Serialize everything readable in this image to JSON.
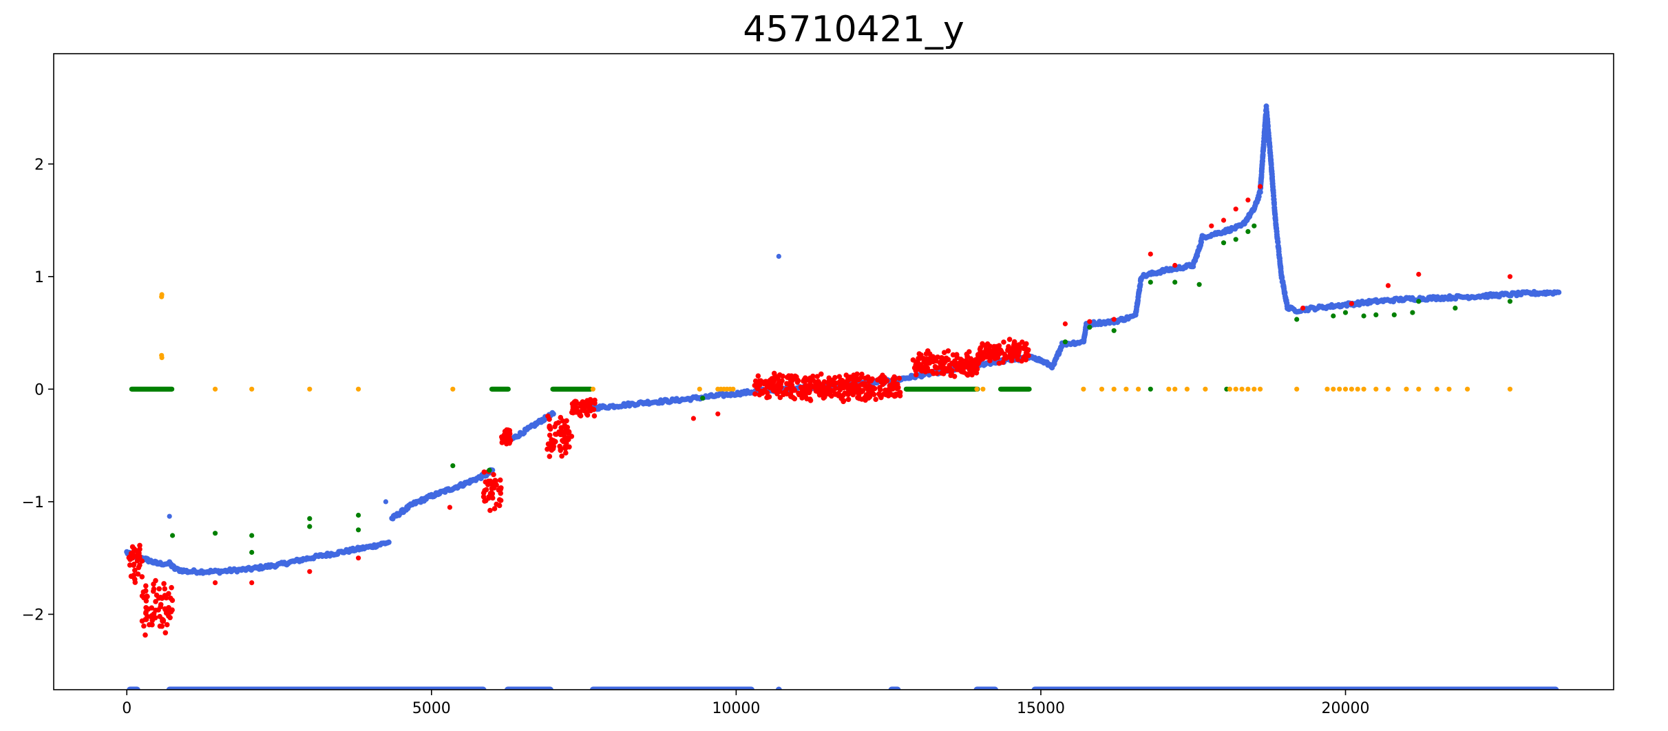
{
  "chart_data": {
    "type": "scatter",
    "title": "45710421_y",
    "xlabel": "",
    "ylabel": "",
    "xlim": [
      -1200,
      24400
    ],
    "ylim": [
      -2.67,
      2.98
    ],
    "xticks": [
      0,
      5000,
      10000,
      15000,
      20000
    ],
    "yticks": [
      -2,
      -1,
      0,
      1,
      2
    ],
    "xtick_labels": [
      "0",
      "5000",
      "10000",
      "15000",
      "20000"
    ],
    "ytick_labels": [
      "−2",
      "−1",
      "0",
      "1",
      "2"
    ],
    "grid": false,
    "legend": "none",
    "colors": {
      "blue": "#4169e1",
      "red": "#ff0000",
      "green": "#008000",
      "orange": "#ffa500"
    },
    "series": [
      {
        "color": "#4169e1",
        "segments": [
          [
            [
              0,
              -1.45
            ],
            [
              120,
              -1.5
            ],
            [
              250,
              -1.5
            ],
            [
              500,
              -1.55
            ],
            [
              700,
              -1.55
            ],
            [
              800,
              -1.6
            ],
            [
              1000,
              -1.62
            ],
            [
              1500,
              -1.62
            ],
            [
              2000,
              -1.6
            ],
            [
              2500,
              -1.56
            ],
            [
              3000,
              -1.5
            ],
            [
              3500,
              -1.45
            ],
            [
              4000,
              -1.4
            ],
            [
              4300,
              -1.36
            ]
          ],
          [
            [
              4350,
              -1.15
            ],
            [
              4700,
              -1.02
            ],
            [
              5000,
              -0.95
            ],
            [
              5500,
              -0.85
            ],
            [
              5900,
              -0.76
            ],
            [
              6000,
              -0.72
            ]
          ],
          [
            [
              6300,
              -0.45
            ],
            [
              6600,
              -0.35
            ],
            [
              6800,
              -0.28
            ],
            [
              7000,
              -0.22
            ]
          ],
          [
            [
              7600,
              -0.17
            ],
            [
              8000,
              -0.15
            ],
            [
              8500,
              -0.12
            ],
            [
              9000,
              -0.1
            ],
            [
              9500,
              -0.07
            ],
            [
              10000,
              -0.04
            ],
            [
              10500,
              -0.01
            ],
            [
              11000,
              0.01
            ],
            [
              11500,
              0.03
            ],
            [
              12000,
              0.05
            ],
            [
              12500,
              0.07
            ],
            [
              13000,
              0.12
            ],
            [
              13500,
              0.17
            ],
            [
              14000,
              0.22
            ],
            [
              14500,
              0.26
            ],
            [
              14900,
              0.28
            ]
          ],
          [
            [
              14900,
              0.28
            ],
            [
              15200,
              0.2
            ],
            [
              15350,
              0.4
            ],
            [
              15700,
              0.42
            ],
            [
              15750,
              0.58
            ],
            [
              16200,
              0.6
            ],
            [
              16550,
              0.65
            ],
            [
              16650,
              1.0
            ],
            [
              17000,
              1.05
            ],
            [
              17500,
              1.1
            ],
            [
              17600,
              1.25
            ],
            [
              17650,
              1.35
            ],
            [
              18000,
              1.4
            ],
            [
              18300,
              1.45
            ],
            [
              18500,
              1.6
            ],
            [
              18600,
              1.75
            ],
            [
              18700,
              2.5
            ],
            [
              18780,
              2.0
            ],
            [
              18850,
              1.5
            ],
            [
              18950,
              1.0
            ],
            [
              19050,
              0.72
            ],
            [
              19200,
              0.7
            ],
            [
              19500,
              0.72
            ],
            [
              20000,
              0.75
            ],
            [
              20500,
              0.78
            ],
            [
              21000,
              0.8
            ],
            [
              22000,
              0.82
            ],
            [
              23000,
              0.85
            ],
            [
              23500,
              0.86
            ]
          ]
        ],
        "points": [
          [
            700,
            -1.13
          ],
          [
            4250,
            -1.0
          ],
          [
            10700,
            1.18
          ]
        ],
        "bottom_bands": [
          [
            0,
            220
          ],
          [
            650,
            5900
          ],
          [
            6200,
            7000
          ],
          [
            7600,
            10300
          ],
          [
            10650,
            10750
          ],
          [
            12500,
            12700
          ],
          [
            13900,
            14300
          ],
          [
            14850,
            23500
          ]
        ],
        "bottom_y": -2.67
      },
      {
        "color": "#ff0000",
        "clusters": [
          {
            "x": [
              30,
              250
            ],
            "y": [
              -1.75,
              -1.35
            ]
          },
          {
            "x": [
              250,
              750
            ],
            "y": [
              -2.2,
              -1.65
            ]
          },
          {
            "x": [
              5850,
              6150
            ],
            "y": [
              -1.1,
              -0.7
            ]
          },
          {
            "x": [
              6150,
              6300
            ],
            "y": [
              -0.5,
              -0.35
            ]
          },
          {
            "x": [
              6900,
              7300
            ],
            "y": [
              -0.65,
              -0.2
            ]
          },
          {
            "x": [
              7300,
              7700
            ],
            "y": [
              -0.25,
              -0.08
            ]
          },
          {
            "x": [
              10300,
              12700
            ],
            "y": [
              -0.12,
              0.15
            ]
          },
          {
            "x": [
              12900,
              14000
            ],
            "y": [
              0.1,
              0.35
            ]
          },
          {
            "x": [
              14000,
              14800
            ],
            "y": [
              0.22,
              0.45
            ]
          }
        ],
        "points": [
          [
            1450,
            -1.72
          ],
          [
            2050,
            -1.72
          ],
          [
            3000,
            -1.62
          ],
          [
            3800,
            -1.5
          ],
          [
            5300,
            -1.05
          ],
          [
            9300,
            -0.26
          ],
          [
            9700,
            -0.22
          ],
          [
            15400,
            0.58
          ],
          [
            15800,
            0.6
          ],
          [
            16200,
            0.62
          ],
          [
            16800,
            1.2
          ],
          [
            17200,
            1.1
          ],
          [
            17800,
            1.45
          ],
          [
            18000,
            1.5
          ],
          [
            18200,
            1.6
          ],
          [
            18400,
            1.68
          ],
          [
            18600,
            1.8
          ],
          [
            20700,
            0.92
          ],
          [
            21200,
            1.02
          ],
          [
            22700,
            1.0
          ],
          [
            19300,
            0.72
          ],
          [
            20100,
            0.76
          ]
        ]
      },
      {
        "color": "#008000",
        "bands_at_zero": [
          [
            40,
            780
          ],
          [
            5950,
            6300
          ],
          [
            6950,
            7650
          ],
          [
            12750,
            14000
          ],
          [
            14300,
            14850
          ]
        ],
        "points": [
          [
            750,
            -1.3
          ],
          [
            1450,
            -1.28
          ],
          [
            2050,
            -1.3
          ],
          [
            2050,
            -1.45
          ],
          [
            3000,
            -1.15
          ],
          [
            3000,
            -1.22
          ],
          [
            3800,
            -1.12
          ],
          [
            3800,
            -1.25
          ],
          [
            5350,
            -0.68
          ],
          [
            5950,
            -0.72
          ],
          [
            9450,
            -0.08
          ],
          [
            15400,
            0.42
          ],
          [
            15800,
            0.55
          ],
          [
            16200,
            0.52
          ],
          [
            16800,
            0.95
          ],
          [
            17200,
            0.95
          ],
          [
            17600,
            0.93
          ],
          [
            18000,
            1.3
          ],
          [
            18200,
            1.33
          ],
          [
            18400,
            1.4
          ],
          [
            18500,
            1.45
          ],
          [
            19200,
            0.62
          ],
          [
            19800,
            0.65
          ],
          [
            20000,
            0.68
          ],
          [
            20300,
            0.65
          ],
          [
            20500,
            0.66
          ],
          [
            20800,
            0.66
          ],
          [
            21100,
            0.68
          ],
          [
            21200,
            0.78
          ],
          [
            21800,
            0.72
          ],
          [
            22700,
            0.78
          ],
          [
            16800,
            0.0
          ],
          [
            18050,
            0.0
          ]
        ]
      },
      {
        "color": "#ffa500",
        "points": [
          [
            570,
            0.82
          ],
          [
            575,
            0.84
          ],
          [
            570,
            0.3
          ],
          [
            575,
            0.28
          ],
          [
            1450,
            0.0
          ],
          [
            2050,
            0.0
          ],
          [
            3000,
            0.0
          ],
          [
            3800,
            0.0
          ],
          [
            5350,
            0.0
          ],
          [
            7650,
            0.0
          ],
          [
            9400,
            0.0
          ],
          [
            9700,
            0.0
          ],
          [
            9750,
            0.0
          ],
          [
            9800,
            0.0
          ],
          [
            9850,
            0.0
          ],
          [
            9900,
            0.0
          ],
          [
            9950,
            0.0
          ],
          [
            13950,
            0.0
          ],
          [
            14050,
            0.0
          ],
          [
            15700,
            0.0
          ],
          [
            16000,
            0.0
          ],
          [
            16200,
            0.0
          ],
          [
            16400,
            0.0
          ],
          [
            16600,
            0.0
          ],
          [
            17100,
            0.0
          ],
          [
            17200,
            0.0
          ],
          [
            17400,
            0.0
          ],
          [
            17700,
            0.0
          ],
          [
            18100,
            0.0
          ],
          [
            18200,
            0.0
          ],
          [
            18300,
            0.0
          ],
          [
            18400,
            0.0
          ],
          [
            18500,
            0.0
          ],
          [
            18600,
            0.0
          ],
          [
            19200,
            0.0
          ],
          [
            19700,
            0.0
          ],
          [
            19800,
            0.0
          ],
          [
            19900,
            0.0
          ],
          [
            20000,
            0.0
          ],
          [
            20100,
            0.0
          ],
          [
            20200,
            0.0
          ],
          [
            20300,
            0.0
          ],
          [
            20500,
            0.0
          ],
          [
            20700,
            0.0
          ],
          [
            21000,
            0.0
          ],
          [
            21200,
            0.0
          ],
          [
            21500,
            0.0
          ],
          [
            21700,
            0.0
          ],
          [
            22000,
            0.0
          ],
          [
            22700,
            0.0
          ]
        ]
      }
    ]
  }
}
